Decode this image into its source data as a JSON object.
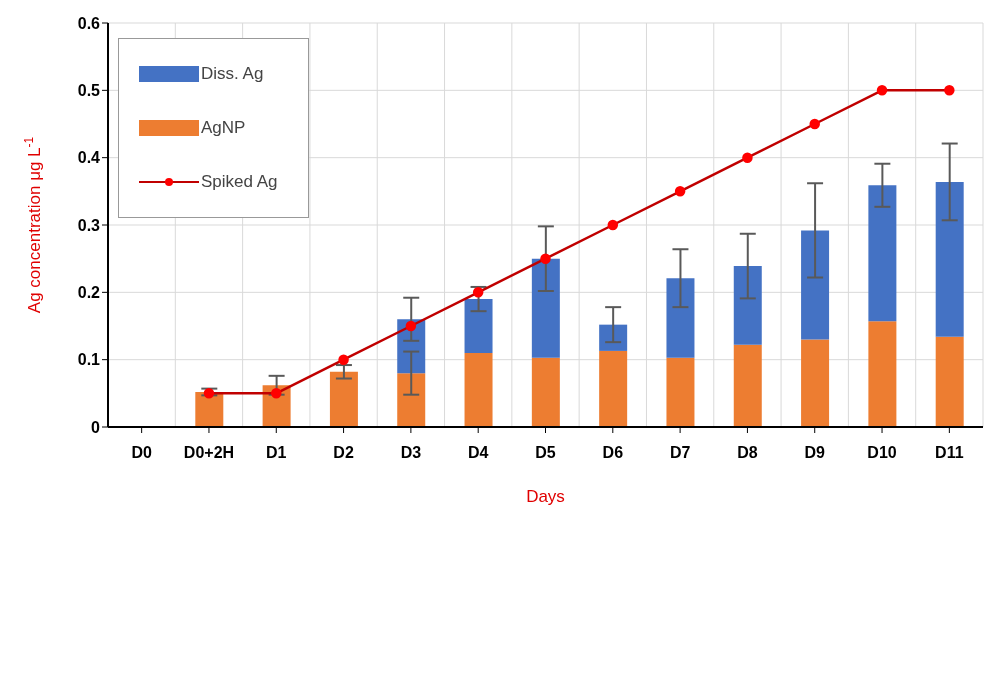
{
  "chart_data": {
    "type": "bar",
    "stacked": true,
    "xlabel": "Days",
    "ylabel": "Ag concentration μg L$^{-1}$",
    "categories": [
      "D0",
      "D0+2H",
      "D1",
      "D2",
      "D3",
      "D4",
      "D5",
      "D6",
      "D7",
      "D8",
      "D9",
      "D10",
      "D11"
    ],
    "series": [
      {
        "name": "AgNP",
        "color": "#ed7d31",
        "values": [
          null,
          0.052,
          0.062,
          0.082,
          0.08,
          0.11,
          0.103,
          0.113,
          0.103,
          0.122,
          0.13,
          0.157,
          0.134
        ],
        "errors": [
          null,
          0.005,
          0.014,
          0.01,
          0.032,
          null,
          null,
          null,
          null,
          null,
          null,
          null,
          null
        ]
      },
      {
        "name": "Diss. Ag",
        "color": "#4472c4",
        "values": [
          null,
          null,
          null,
          null,
          0.08,
          0.08,
          0.147,
          0.039,
          0.118,
          0.117,
          0.162,
          0.202,
          0.23
        ],
        "errors": [
          null,
          null,
          null,
          null,
          0.032,
          0.018,
          0.048,
          0.026,
          0.043,
          0.048,
          0.07,
          0.032,
          0.057
        ]
      },
      {
        "name": "Spiked Ag",
        "type": "line",
        "color": "#c00000",
        "marker": "circle",
        "values": [
          null,
          0.05,
          0.05,
          0.1,
          0.15,
          0.2,
          0.25,
          0.3,
          0.35,
          0.4,
          0.45,
          0.5,
          0.5
        ]
      }
    ],
    "ylim": [
      0,
      0.6
    ],
    "yticks": [
      0,
      0.1,
      0.2,
      0.3,
      0.4,
      0.5,
      0.6
    ],
    "grid": true,
    "legend": "top left"
  }
}
